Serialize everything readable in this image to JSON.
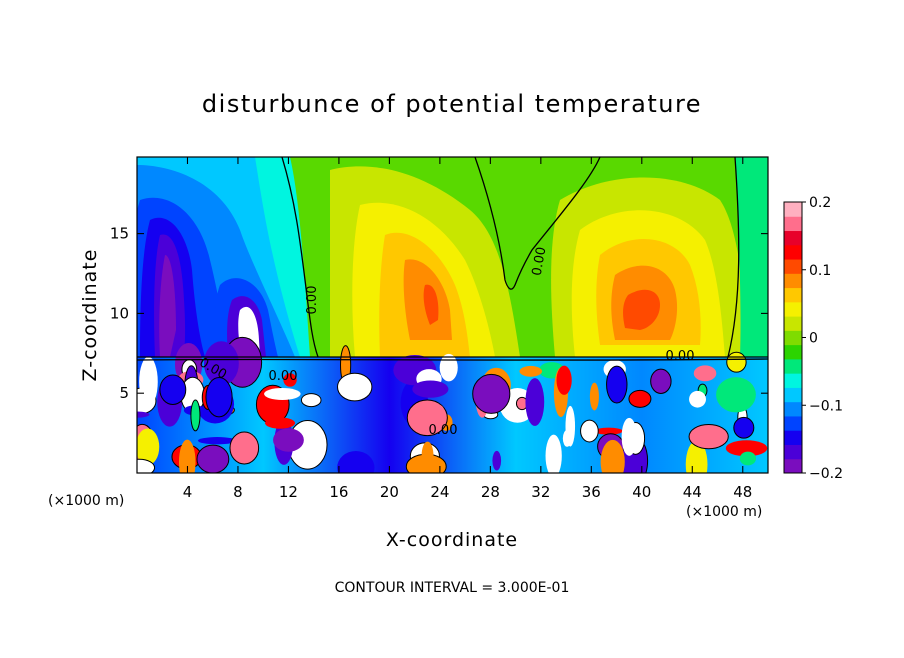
{
  "chart_data": {
    "type": "heatmap",
    "title": "disturbunce of potential temperature",
    "xlabel": "X-coordinate",
    "ylabel": "Z-coordinate",
    "x_unit": "(×1000 m)",
    "y_unit": "(×1000 m)",
    "xlim": [
      0,
      50
    ],
    "ylim": [
      0,
      19.8
    ],
    "x_ticks": [
      "4",
      "8",
      "12",
      "16",
      "20",
      "24",
      "28",
      "32",
      "36",
      "40",
      "44",
      "48"
    ],
    "y_ticks": [
      "5",
      "10",
      "15"
    ],
    "colorbar": {
      "range": [
        -0.2,
        0.2
      ],
      "ticks": [
        "0.2",
        "0.1",
        "0",
        "−0.1",
        "−0.2"
      ],
      "colors": [
        "#7a0dbe",
        "#4b00d8",
        "#1500f0",
        "#0044ff",
        "#0088ff",
        "#00c8ff",
        "#00f5e0",
        "#00e87a",
        "#2cd400",
        "#7fdc00",
        "#c8e600",
        "#f5f000",
        "#ffc800",
        "#ff8c00",
        "#ff4a00",
        "#ff0000",
        "#e8002a",
        "#ff6e8c",
        "#ffb0c0"
      ]
    },
    "contour_labels": [
      "0.00",
      "0.00",
      "0.00",
      "0.00",
      "0.00",
      "0.00"
    ],
    "footnote": "CONTOUR INTERVAL = 3.000E-01"
  }
}
